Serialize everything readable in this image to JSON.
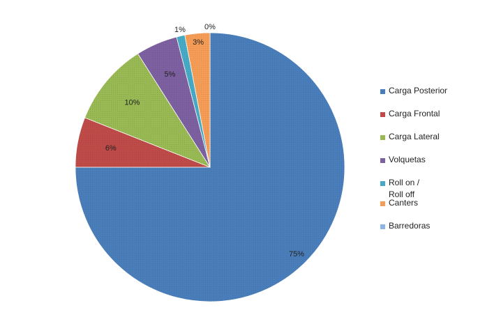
{
  "chart_data": {
    "type": "pie",
    "start_angle_deg": 0,
    "direction": "clockwise",
    "slices": [
      {
        "name": "Carga Posterior",
        "value": 75,
        "label": "75%",
        "color": "#4A7EBB"
      },
      {
        "name": "Carga Frontal",
        "value": 6,
        "label": "6%",
        "color": "#BE4B48"
      },
      {
        "name": "Carga Lateral",
        "value": 10,
        "label": "10%",
        "color": "#98B954"
      },
      {
        "name": "Volquetas",
        "value": 5,
        "label": "5%",
        "color": "#7D60A0"
      },
      {
        "name": "Roll on /\nRoll off",
        "value": 1,
        "label": "1%",
        "color": "#46AAC5"
      },
      {
        "name": "Canters",
        "value": 3,
        "label": "3%",
        "color": "#F59D56"
      },
      {
        "name": "Barredoras",
        "value": 0,
        "label": "0%",
        "color": "#8EB4E3"
      }
    ],
    "legend_position": "right"
  }
}
